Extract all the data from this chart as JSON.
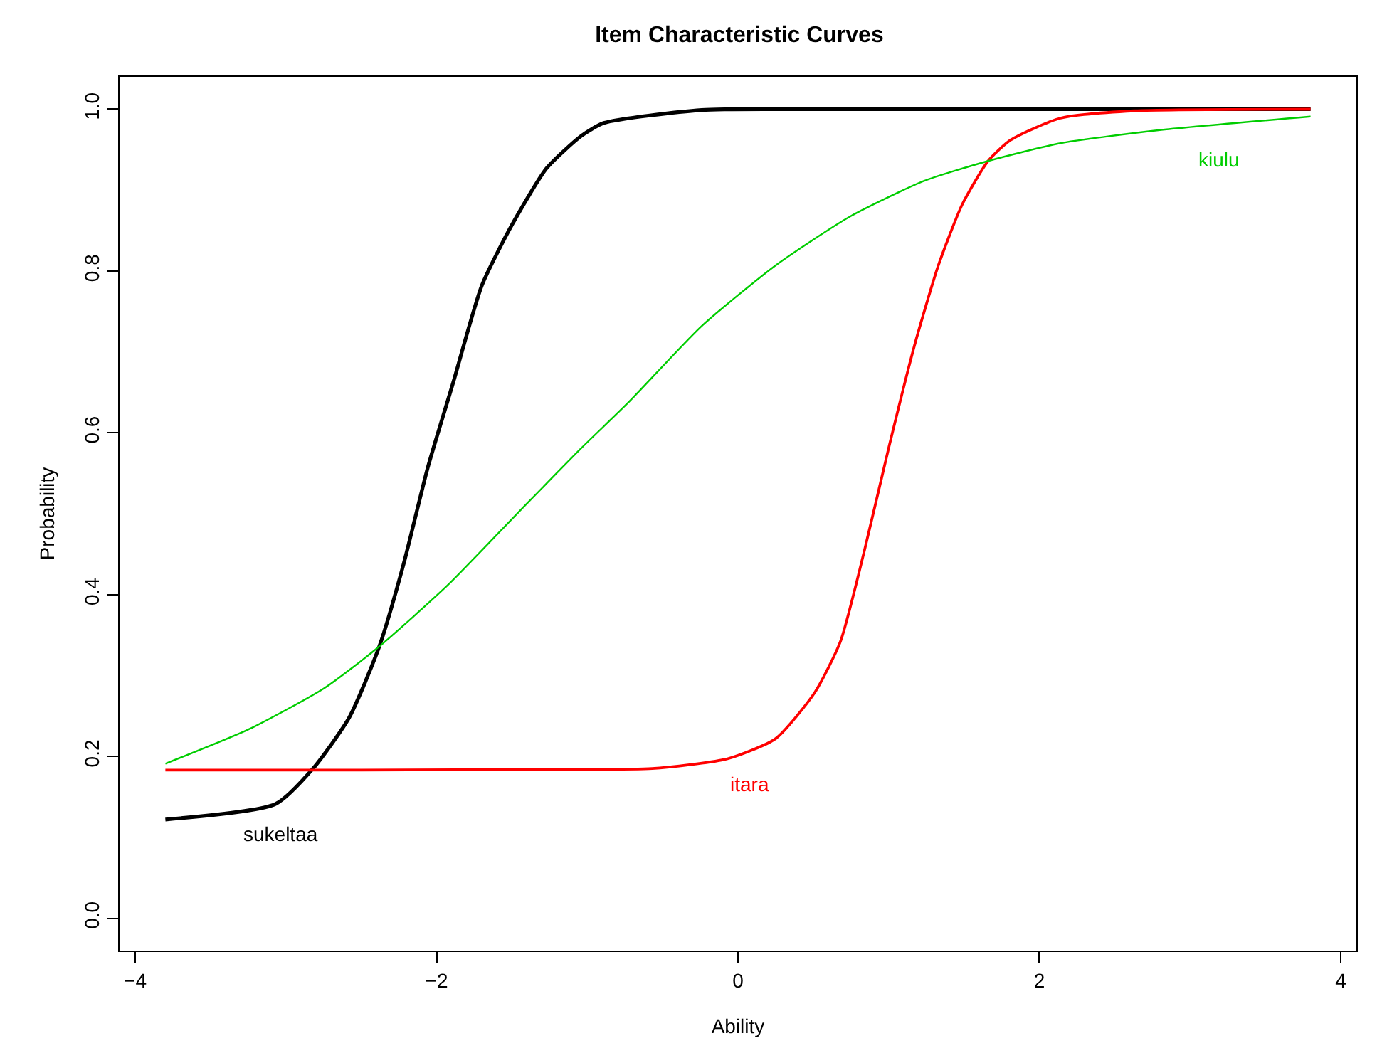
{
  "chart_data": {
    "type": "line",
    "title": "Item Characteristic Curves",
    "xlabel": "Ability",
    "ylabel": "Probability",
    "xlim": [
      -4.104,
      4.104
    ],
    "xticks": [
      -4,
      -2,
      0,
      2,
      4
    ],
    "ylim": [
      -0.04,
      1.04
    ],
    "yticks": [
      {
        "value": 0,
        "label": "0.0"
      },
      0.2,
      0.4,
      0.6,
      0.8,
      {
        "value": 1,
        "label": "1.0"
      }
    ],
    "grid": false,
    "legend": false,
    "marker": "none",
    "line_style": "solid",
    "series": [
      {
        "name": "sukeltaa",
        "color": "#000000",
        "x": [
          -3.8,
          -3.07,
          -2.82,
          -2.58,
          -2.38,
          -2.22,
          -2.06,
          -1.89,
          -1.7,
          -1.5,
          -1.27,
          -1.04,
          -0.89,
          -0.24,
          0.5,
          1.5,
          2.5,
          3.8
        ],
        "values": [
          0.122,
          0.141,
          0.185,
          0.248,
          0.336,
          0.437,
          0.556,
          0.662,
          0.782,
          0.857,
          0.927,
          0.967,
          0.983,
          0.999,
          1.0,
          1.0,
          1.0,
          1.0
        ]
      },
      {
        "name": "itara",
        "color": "#ff0000",
        "x": [
          -3.8,
          -2.5,
          -1.21,
          -0.57,
          -0.07,
          0.25,
          0.51,
          0.68,
          0.84,
          1.0,
          1.17,
          1.33,
          1.49,
          1.66,
          1.81,
          2.14,
          2.63,
          3.8
        ],
        "values": [
          0.183,
          0.183,
          0.184,
          0.185,
          0.197,
          0.222,
          0.279,
          0.342,
          0.455,
          0.581,
          0.707,
          0.807,
          0.883,
          0.936,
          0.962,
          0.989,
          0.998,
          1.0
        ]
      },
      {
        "name": "kiulu",
        "color": "#00cd00",
        "x": [
          -3.8,
          -3.23,
          -2.74,
          -2.38,
          -1.93,
          -1.44,
          -1.04,
          -0.73,
          -0.24,
          0.25,
          0.74,
          1.23,
          1.66,
          2.14,
          2.79,
          3.8
        ],
        "values": [
          0.191,
          0.235,
          0.285,
          0.336,
          0.411,
          0.505,
          0.581,
          0.637,
          0.732,
          0.807,
          0.867,
          0.911,
          0.936,
          0.958,
          0.974,
          0.991
        ]
      }
    ]
  }
}
